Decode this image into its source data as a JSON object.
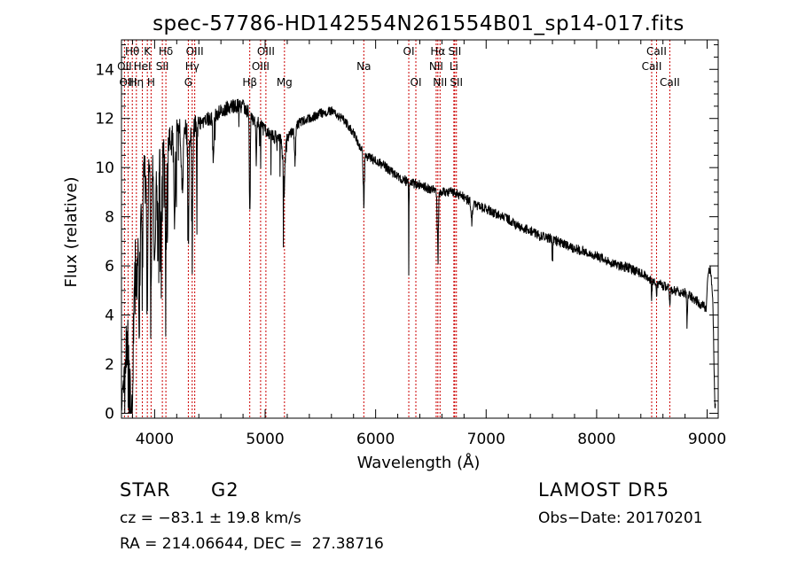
{
  "chart_data": {
    "type": "line",
    "title": "spec-57786-HD142554N261554B01_sp14-017.fits",
    "xlabel": "Wavelength (Å)",
    "ylabel": "Flux (relative)",
    "xlim": [
      3700,
      9100
    ],
    "ylim": [
      -0.2,
      15.2
    ],
    "xticks": [
      4000,
      5000,
      6000,
      7000,
      8000,
      9000
    ],
    "yticks": [
      0,
      2,
      4,
      6,
      8,
      10,
      12,
      14
    ],
    "grid": false,
    "line_color": "#000000",
    "marker_color": "#cc0000",
    "lines": [
      {
        "label": "Hθ",
        "x": 3798,
        "row": 0
      },
      {
        "label": "OII",
        "x": 3727,
        "row": 1
      },
      {
        "label": "OIII",
        "x": 3760,
        "row": 2
      },
      {
        "label": "Hη",
        "x": 3835,
        "row": 2
      },
      {
        "label": "HeI",
        "x": 3889,
        "row": 1
      },
      {
        "label": "K",
        "x": 3934,
        "row": 0
      },
      {
        "label": "H",
        "x": 3968,
        "row": 2
      },
      {
        "label": "SII",
        "x": 4070,
        "row": 1
      },
      {
        "label": "Hδ",
        "x": 4102,
        "row": 0
      },
      {
        "label": "Hγ",
        "x": 4340,
        "row": 1
      },
      {
        "label": "G",
        "x": 4305,
        "row": 2
      },
      {
        "label": "OIII",
        "x": 4363,
        "row": 0
      },
      {
        "label": "Hβ",
        "x": 4861,
        "row": 2
      },
      {
        "label": "OIII",
        "x": 4959,
        "row": 1
      },
      {
        "label": "OIII",
        "x": 5007,
        "row": 0
      },
      {
        "label": "Mg",
        "x": 5175,
        "row": 2
      },
      {
        "label": "Na",
        "x": 5893,
        "row": 1
      },
      {
        "label": "OI",
        "x": 6300,
        "row": 0
      },
      {
        "label": "OI",
        "x": 6364,
        "row": 2
      },
      {
        "label": "NII",
        "x": 6548,
        "row": 1
      },
      {
        "label": "Hα",
        "x": 6563,
        "row": 0
      },
      {
        "label": "NII",
        "x": 6583,
        "row": 2
      },
      {
        "label": "Li",
        "x": 6708,
        "row": 1
      },
      {
        "label": "SII",
        "x": 6716,
        "row": 0
      },
      {
        "label": "SII",
        "x": 6731,
        "row": 2
      },
      {
        "label": "CaII",
        "x": 8498,
        "row": 1
      },
      {
        "label": "CaII",
        "x": 8542,
        "row": 0
      },
      {
        "label": "CaII",
        "x": 8662,
        "row": 2
      }
    ],
    "continuum": [
      [
        3700,
        0.2
      ],
      [
        3720,
        1.5
      ],
      [
        3760,
        8.5
      ],
      [
        3800,
        9.0
      ],
      [
        3850,
        9.5
      ],
      [
        3900,
        10.0
      ],
      [
        3950,
        10.2
      ],
      [
        4000,
        10.5
      ],
      [
        4050,
        10.8
      ],
      [
        4100,
        11.0
      ],
      [
        4200,
        11.5
      ],
      [
        4300,
        11.5
      ],
      [
        4400,
        11.8
      ],
      [
        4500,
        12.0
      ],
      [
        4600,
        12.3
      ],
      [
        4700,
        12.5
      ],
      [
        4800,
        12.5
      ],
      [
        4900,
        12.0
      ],
      [
        5000,
        11.5
      ],
      [
        5100,
        11.2
      ],
      [
        5200,
        11.2
      ],
      [
        5300,
        11.8
      ],
      [
        5400,
        12.0
      ],
      [
        5500,
        12.2
      ],
      [
        5600,
        12.3
      ],
      [
        5700,
        12.0
      ],
      [
        5800,
        11.4
      ],
      [
        5900,
        10.5
      ],
      [
        6000,
        10.3
      ],
      [
        6100,
        10.0
      ],
      [
        6200,
        9.6
      ],
      [
        6300,
        9.4
      ],
      [
        6400,
        9.3
      ],
      [
        6500,
        9.1
      ],
      [
        6600,
        9.0
      ],
      [
        6700,
        9.0
      ],
      [
        6800,
        8.8
      ],
      [
        6900,
        8.5
      ],
      [
        7000,
        8.3
      ],
      [
        7100,
        8.1
      ],
      [
        7200,
        7.9
      ],
      [
        7300,
        7.6
      ],
      [
        7400,
        7.4
      ],
      [
        7500,
        7.2
      ],
      [
        7600,
        7.1
      ],
      [
        7700,
        6.9
      ],
      [
        7800,
        6.7
      ],
      [
        7900,
        6.6
      ],
      [
        8000,
        6.4
      ],
      [
        8100,
        6.2
      ],
      [
        8200,
        6.0
      ],
      [
        8300,
        5.9
      ],
      [
        8400,
        5.7
      ],
      [
        8500,
        5.4
      ],
      [
        8600,
        5.2
      ],
      [
        8700,
        5.0
      ],
      [
        8800,
        4.9
      ],
      [
        8900,
        4.6
      ],
      [
        8950,
        4.4
      ],
      [
        8990,
        4.3
      ],
      [
        9010,
        5.7
      ],
      [
        9030,
        5.9
      ],
      [
        9050,
        4.8
      ],
      [
        9070,
        0.3
      ]
    ],
    "absorption": [
      [
        3770,
        60,
        7.5
      ],
      [
        3800,
        40,
        7.0
      ],
      [
        3835,
        15,
        5.0
      ],
      [
        3860,
        30,
        6.0
      ],
      [
        3889,
        12,
        5.5
      ],
      [
        3934,
        14,
        8.0
      ],
      [
        3968,
        14,
        7.5
      ],
      [
        4000,
        20,
        5.0
      ],
      [
        4030,
        20,
        4.5
      ],
      [
        4060,
        15,
        4.0
      ],
      [
        4102,
        18,
        5.5
      ],
      [
        4180,
        20,
        3.5
      ],
      [
        4250,
        20,
        3.0
      ],
      [
        4305,
        14,
        5.5
      ],
      [
        4340,
        15,
        4.5
      ],
      [
        4383,
        8,
        3.0
      ],
      [
        4530,
        15,
        2.0
      ],
      [
        4861,
        10,
        6.0
      ],
      [
        4920,
        10,
        1.5
      ],
      [
        5170,
        25,
        2.5
      ],
      [
        5270,
        15,
        1.5
      ],
      [
        5893,
        14,
        2.5
      ],
      [
        6300,
        5,
        3.5
      ],
      [
        6563,
        14,
        3.2
      ],
      [
        6870,
        20,
        0.8
      ],
      [
        7600,
        12,
        1.0
      ],
      [
        8498,
        8,
        1.0
      ],
      [
        8542,
        8,
        1.0
      ],
      [
        8662,
        8,
        1.0
      ],
      [
        8820,
        10,
        1.8
      ]
    ]
  },
  "info": {
    "class_label": "STAR",
    "subclass_label": "G2",
    "survey": "LAMOST DR5",
    "cz": "cz = −83.1 ± 19.8 km/s",
    "obs_date": "Obs−Date: 20170201",
    "coords": "RA = 214.06644, DEC =  27.38716"
  }
}
